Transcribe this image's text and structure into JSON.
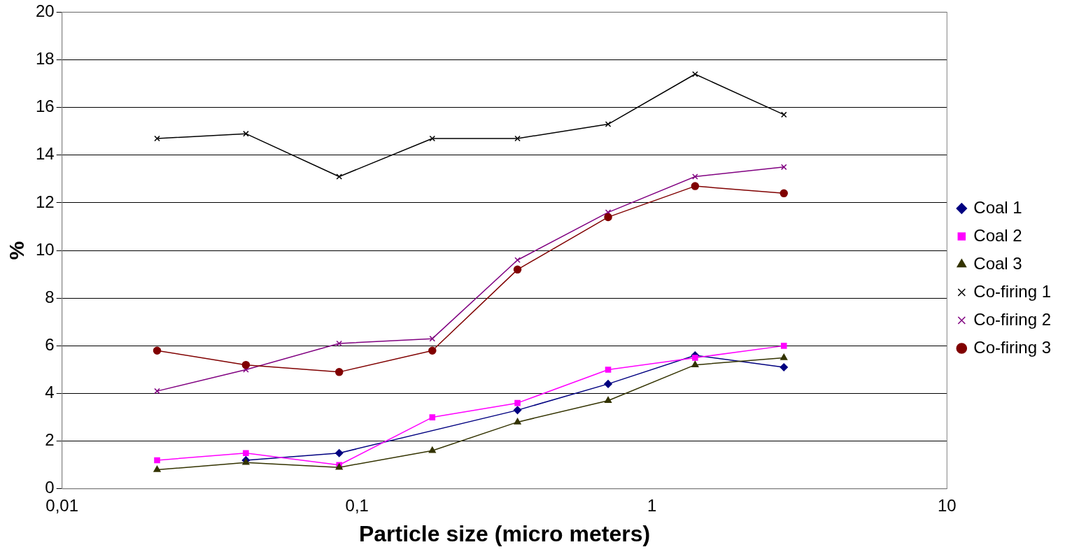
{
  "chart_data": {
    "type": "line",
    "xlabel": "Particle size (micro meters)",
    "ylabel": "%",
    "log": "x",
    "xlim": [
      0.01,
      10
    ],
    "xticks": [
      {
        "value": 0.01,
        "label": "0,01"
      },
      {
        "value": 0.1,
        "label": "0,1"
      },
      1,
      10
    ],
    "ylim": [
      0,
      20
    ],
    "yticks": [
      0,
      2,
      4,
      6,
      8,
      10,
      12,
      14,
      16,
      18,
      20
    ],
    "grid": "y",
    "legend": "right",
    "x": [
      0.021,
      0.042,
      0.087,
      0.18,
      0.35,
      0.71,
      1.4,
      2.8
    ],
    "series": [
      {
        "name": "Coal 1",
        "color": "#000080",
        "marker": "diamond",
        "values": [
          null,
          1.2,
          1.5,
          null,
          3.3,
          4.4,
          5.6,
          5.1
        ]
      },
      {
        "name": "Coal 2",
        "color": "#ff00ff",
        "marker": "square",
        "values": [
          1.2,
          1.5,
          1.0,
          3.0,
          3.6,
          5.0,
          5.5,
          6.0
        ]
      },
      {
        "name": "Coal 3",
        "color": "#333300",
        "marker": "triangle",
        "values": [
          0.8,
          1.1,
          0.9,
          1.6,
          2.8,
          3.7,
          5.2,
          5.5
        ]
      },
      {
        "name": "Co-firing 1",
        "color": "#000000",
        "marker": "cross",
        "values": [
          14.7,
          14.9,
          13.1,
          14.7,
          14.7,
          15.3,
          17.4,
          15.7
        ]
      },
      {
        "name": "Co-firing 2",
        "color": "#800080",
        "marker": "cross",
        "values": [
          4.1,
          5.0,
          6.1,
          6.3,
          9.6,
          11.6,
          13.1,
          13.5
        ]
      },
      {
        "name": "Co-firing 3",
        "color": "#800000",
        "marker": "circle",
        "values": [
          5.8,
          5.2,
          4.9,
          5.8,
          9.2,
          11.4,
          12.7,
          12.4
        ]
      }
    ]
  }
}
